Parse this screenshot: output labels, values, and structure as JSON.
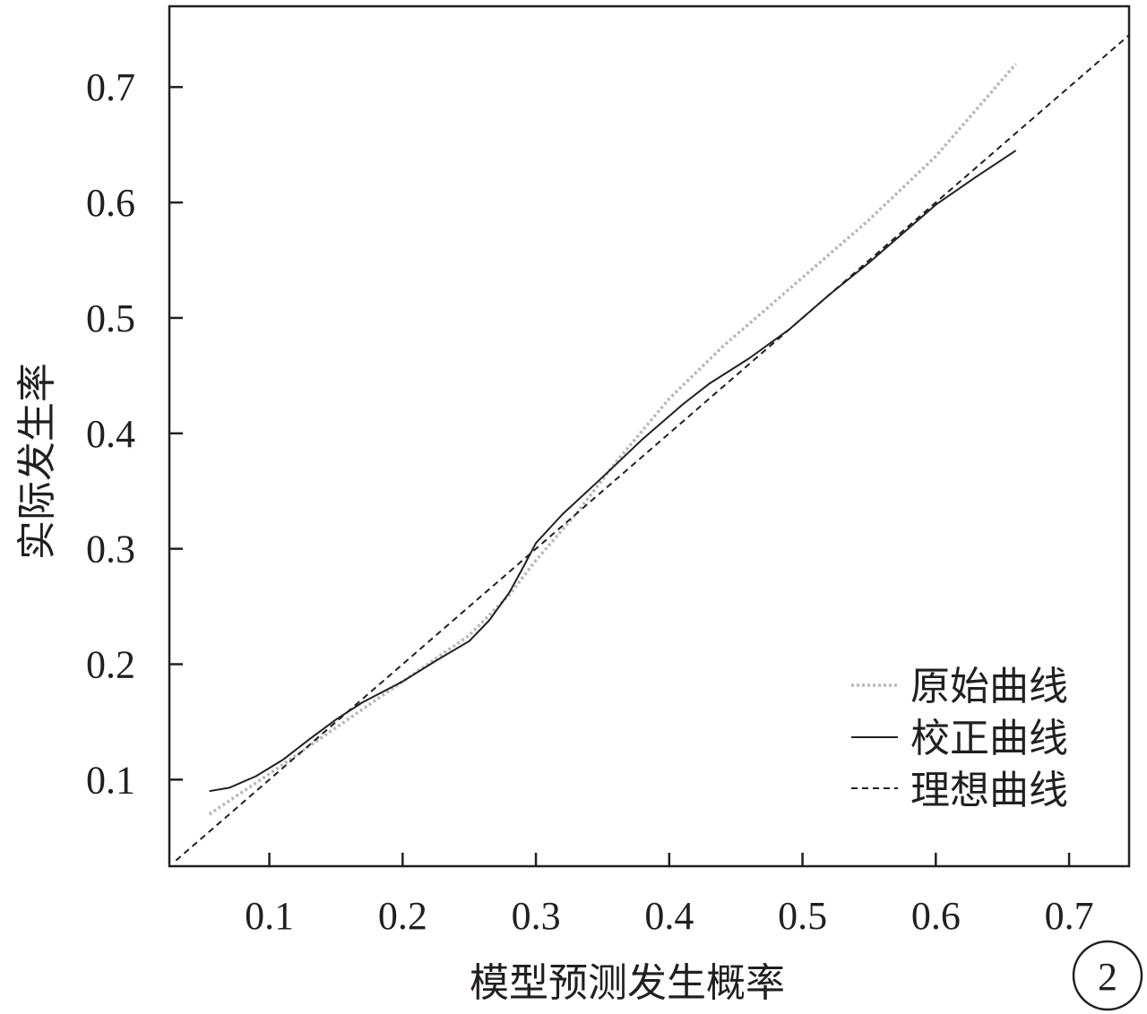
{
  "chart_data": {
    "type": "line",
    "xlabel": "模型预测发生概率",
    "ylabel": "实际发生率",
    "xlim": [
      0.025,
      0.745
    ],
    "ylim": [
      0.025,
      0.77
    ],
    "x_ticks": [
      0.1,
      0.2,
      0.3,
      0.4,
      0.5,
      0.6,
      0.7
    ],
    "y_ticks": [
      0.1,
      0.2,
      0.3,
      0.4,
      0.5,
      0.6,
      0.7
    ],
    "x_tick_labels": [
      "0.1",
      "0.2",
      "0.3",
      "0.4",
      "0.5",
      "0.6",
      "0.7"
    ],
    "y_tick_labels": [
      "0.1",
      "0.2",
      "0.3",
      "0.4",
      "0.5",
      "0.6",
      "0.7"
    ],
    "grid": false,
    "legend_position": "bottom-right",
    "series": [
      {
        "name": "原始曲线",
        "style": "dotted",
        "color": "#b8b8b8",
        "x": [
          0.055,
          0.1,
          0.15,
          0.2,
          0.25,
          0.28,
          0.3,
          0.33,
          0.36,
          0.4,
          0.44,
          0.5,
          0.55,
          0.6,
          0.66
        ],
        "y": [
          0.07,
          0.105,
          0.145,
          0.185,
          0.225,
          0.26,
          0.29,
          0.33,
          0.375,
          0.43,
          0.475,
          0.535,
          0.585,
          0.64,
          0.72
        ]
      },
      {
        "name": "校正曲线",
        "style": "solid",
        "color": "#231f20",
        "x": [
          0.055,
          0.07,
          0.09,
          0.11,
          0.13,
          0.15,
          0.17,
          0.2,
          0.225,
          0.25,
          0.265,
          0.28,
          0.29,
          0.3,
          0.32,
          0.35,
          0.38,
          0.41,
          0.43,
          0.46,
          0.49,
          0.52,
          0.55,
          0.58,
          0.6,
          0.63,
          0.66
        ],
        "y": [
          0.09,
          0.093,
          0.103,
          0.117,
          0.135,
          0.152,
          0.167,
          0.185,
          0.203,
          0.22,
          0.238,
          0.262,
          0.283,
          0.305,
          0.33,
          0.362,
          0.395,
          0.425,
          0.443,
          0.465,
          0.49,
          0.52,
          0.548,
          0.578,
          0.598,
          0.622,
          0.645
        ]
      },
      {
        "name": "理想曲线",
        "style": "dashed",
        "color": "#231f20",
        "x": [
          0.03,
          0.745
        ],
        "y": [
          0.03,
          0.745
        ]
      }
    ]
  },
  "badge": {
    "text": "2"
  }
}
